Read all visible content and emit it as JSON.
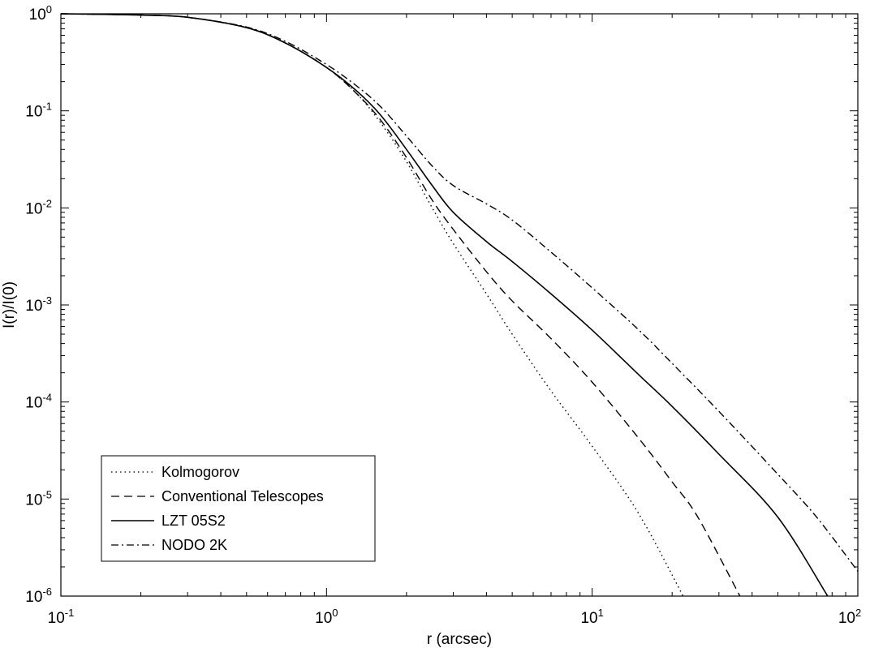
{
  "chart_data": {
    "type": "line",
    "xlabel": "r (arcsec)",
    "ylabel": "I(r)/I(0)",
    "x_scale": "log",
    "y_scale": "log",
    "xlim": [
      0.1,
      100
    ],
    "ylim": [
      1e-06,
      1
    ],
    "grid": false,
    "legend_position": "bottom-left",
    "x_ticks": [
      {
        "base": "10",
        "exp": "-1"
      },
      {
        "base": "10",
        "exp": "0"
      },
      {
        "base": "10",
        "exp": "1"
      },
      {
        "base": "10",
        "exp": "2"
      }
    ],
    "y_ticks": [
      {
        "base": "10",
        "exp": "0"
      },
      {
        "base": "10",
        "exp": "-1"
      },
      {
        "base": "10",
        "exp": "-2"
      },
      {
        "base": "10",
        "exp": "-3"
      },
      {
        "base": "10",
        "exp": "-4"
      },
      {
        "base": "10",
        "exp": "-5"
      },
      {
        "base": "10",
        "exp": "-6"
      }
    ],
    "series": [
      {
        "name": "Kolmogorov",
        "style": "dotted",
        "x": [
          0.1,
          0.2,
          0.3,
          0.5,
          0.7,
          1.0,
          1.3,
          1.6,
          2.0,
          2.5,
          3.0,
          4.0,
          5.0,
          7.0,
          10,
          15,
          22
        ],
        "y": [
          1.0,
          0.97,
          0.92,
          0.72,
          0.5,
          0.28,
          0.15,
          0.075,
          0.03,
          0.01,
          0.0043,
          0.0013,
          0.0005,
          0.00013,
          3.5e-05,
          7e-06,
          1e-06
        ]
      },
      {
        "name": "Conventional Telescopes",
        "style": "dashed",
        "x": [
          0.1,
          0.2,
          0.3,
          0.5,
          0.7,
          1.0,
          1.3,
          1.6,
          2.0,
          2.5,
          3.0,
          4.0,
          5.0,
          7.0,
          10,
          15,
          20,
          25,
          36
        ],
        "y": [
          1.0,
          0.97,
          0.92,
          0.72,
          0.5,
          0.28,
          0.15,
          0.08,
          0.033,
          0.012,
          0.006,
          0.0022,
          0.0011,
          0.00045,
          0.00016,
          4.2e-05,
          1.5e-05,
          6.5e-06,
          1e-06
        ]
      },
      {
        "name": "LZT 05S2",
        "style": "solid",
        "x": [
          0.1,
          0.2,
          0.3,
          0.5,
          0.7,
          1.0,
          1.3,
          1.6,
          2.0,
          2.5,
          3.0,
          4.0,
          5.0,
          7.0,
          10,
          15,
          20,
          30,
          50,
          77
        ],
        "y": [
          1.0,
          0.97,
          0.92,
          0.72,
          0.5,
          0.28,
          0.16,
          0.09,
          0.04,
          0.017,
          0.009,
          0.0045,
          0.0028,
          0.0013,
          0.00055,
          0.00019,
          9e-05,
          2.9e-05,
          6.5e-06,
          1e-06
        ]
      },
      {
        "name": "NODO 2K",
        "style": "dashdot",
        "x": [
          0.1,
          0.2,
          0.3,
          0.5,
          0.7,
          1.0,
          1.3,
          1.6,
          2.0,
          2.5,
          3.0,
          4.0,
          5.0,
          7.0,
          10,
          15,
          20,
          30,
          50,
          70,
          100
        ],
        "y": [
          1.0,
          0.97,
          0.92,
          0.73,
          0.52,
          0.3,
          0.18,
          0.11,
          0.055,
          0.027,
          0.017,
          0.011,
          0.0075,
          0.0035,
          0.0015,
          0.00055,
          0.00025,
          8e-05,
          1.8e-05,
          6.5e-06,
          1.8e-06
        ]
      }
    ]
  }
}
